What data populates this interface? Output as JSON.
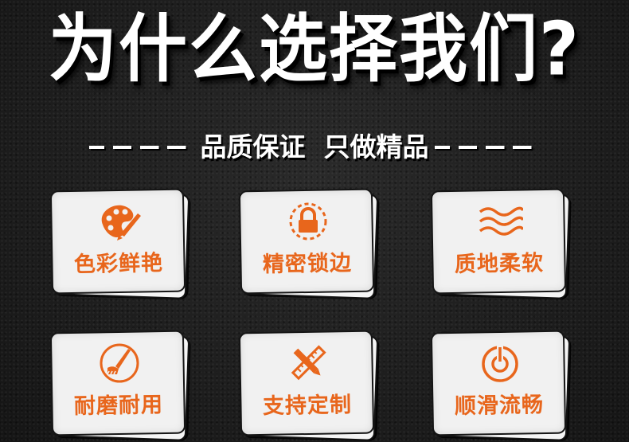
{
  "header": {
    "title": "为什么选择我们?",
    "subtitle": "品质保证  只做精品"
  },
  "features": [
    {
      "label": "色彩鲜艳",
      "icon": "palette-icon"
    },
    {
      "label": "精密锁边",
      "icon": "lock-icon"
    },
    {
      "label": "质地柔软",
      "icon": "waves-icon"
    },
    {
      "label": "耐磨耐用",
      "icon": "brush-icon"
    },
    {
      "label": "支持定制",
      "icon": "ruler-pencil-icon"
    },
    {
      "label": "顺滑流畅",
      "icon": "power-icon"
    }
  ],
  "colors": {
    "accent": "#e8661c",
    "card": "#f1f1f1",
    "background": "#1c1c1c",
    "text": "#ffffff"
  }
}
